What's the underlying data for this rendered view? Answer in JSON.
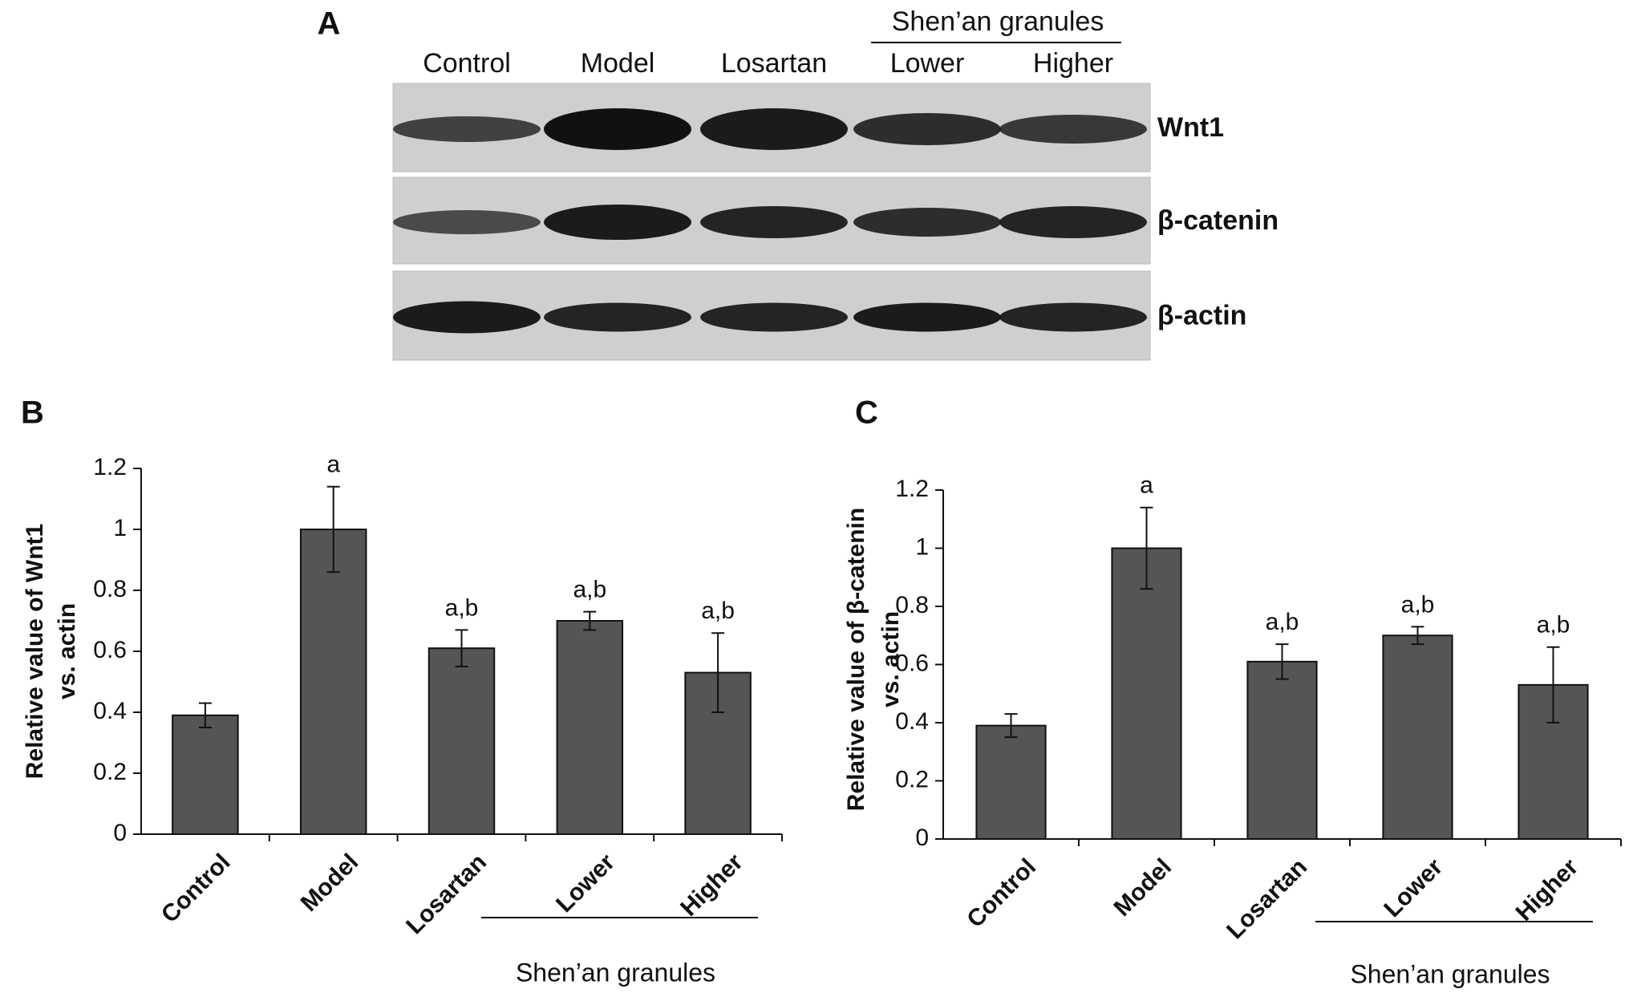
{
  "panel_a": {
    "panel": "A",
    "lanes": [
      "Control",
      "Model",
      "Losartan",
      "Lower",
      "Higher"
    ],
    "group_label": "Shen’an  granules",
    "rows": [
      "Wnt1",
      "β-catenin",
      "β-actin"
    ]
  },
  "chart_data": [
    {
      "type": "bar",
      "panel": "B",
      "ylabel": [
        "Relative value of Wnt1",
        "vs. actin"
      ],
      "categories": [
        "Control",
        "Model",
        "Losartan",
        "Lower",
        "Higher"
      ],
      "values": [
        0.39,
        1.0,
        0.61,
        0.7,
        0.53
      ],
      "errors": [
        0.04,
        0.14,
        0.06,
        0.03,
        0.13
      ],
      "annotations": [
        null,
        "a",
        "a,b",
        "a,b",
        "a,b"
      ],
      "group_label": "Shen’an  granules",
      "color": "#555555",
      "ylim": [
        0,
        1.2
      ],
      "yticks": [
        0,
        0.2,
        0.4,
        0.6,
        0.8,
        1,
        1.2
      ]
    },
    {
      "type": "bar",
      "panel": "C",
      "ylabel": [
        "Relative value of  β-catenin",
        "vs. actin"
      ],
      "categories": [
        "Control",
        "Model",
        "Losartan",
        "Lower",
        "Higher"
      ],
      "values": [
        0.39,
        1.0,
        0.61,
        0.7,
        0.53
      ],
      "errors": [
        0.04,
        0.14,
        0.06,
        0.03,
        0.13
      ],
      "annotations": [
        null,
        "a",
        "a,b",
        "a,b",
        "a,b"
      ],
      "group_label": "Shen’an granules",
      "color": "#555555",
      "ylim": [
        0,
        1.2
      ],
      "yticks": [
        0,
        0.2,
        0.4,
        0.6,
        0.8,
        1,
        1.2
      ]
    }
  ]
}
